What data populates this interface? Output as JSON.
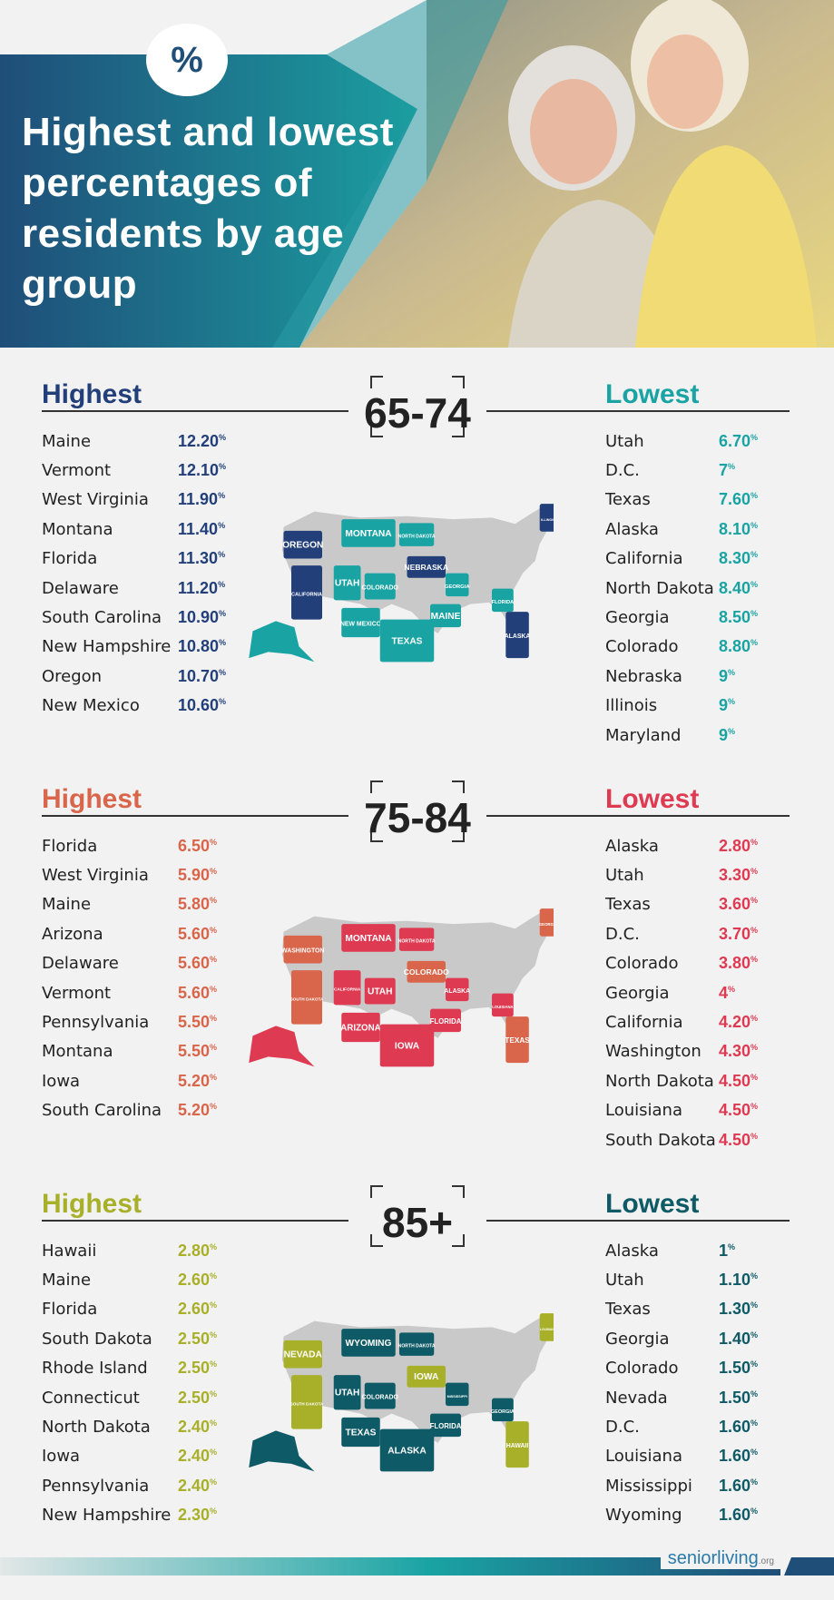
{
  "header": {
    "percent_symbol": "%",
    "title": "Highest and lowest percentages of residents by age group"
  },
  "logo": {
    "text": "seniorliving",
    "suffix": ".org"
  },
  "colors": {
    "navy": "#223f7a",
    "teal": "#1aa3a3",
    "coral": "#d9654a",
    "red": "#de3a52",
    "olive": "#a8b02a",
    "darkteal": "#0e5a66",
    "mapgray": "#c9c9c9"
  },
  "sections": [
    {
      "age": "65-74",
      "highest_label": "Highest",
      "lowest_label": "Lowest",
      "highest": [
        {
          "state": "Maine",
          "value": "12.20"
        },
        {
          "state": "Vermont",
          "value": "12.10"
        },
        {
          "state": "West Virginia",
          "value": "11.90"
        },
        {
          "state": "Montana",
          "value": "11.40"
        },
        {
          "state": "Florida",
          "value": "11.30"
        },
        {
          "state": "Delaware",
          "value": "11.20"
        },
        {
          "state": "South Carolina",
          "value": "10.90"
        },
        {
          "state": "New Hampshire",
          "value": "10.80"
        },
        {
          "state": "Oregon",
          "value": "10.70"
        },
        {
          "state": "New Mexico",
          "value": "10.60"
        }
      ],
      "lowest": [
        {
          "state": "Utah",
          "value": "6.70"
        },
        {
          "state": "D.C.",
          "value": "7"
        },
        {
          "state": "Texas",
          "value": "7.60"
        },
        {
          "state": "Alaska",
          "value": "8.10"
        },
        {
          "state": "California",
          "value": "8.30"
        },
        {
          "state": "North Dakota",
          "value": "8.40"
        },
        {
          "state": "Georgia",
          "value": "8.50"
        },
        {
          "state": "Colorado",
          "value": "8.80"
        },
        {
          "state": "Nebraska",
          "value": "9"
        },
        {
          "state": "Illinois",
          "value": "9"
        },
        {
          "state": "Maryland",
          "value": "9"
        }
      ],
      "map_states": [
        "OREGON",
        "MONTANA",
        "NORTH DAKOTA",
        "CALIFORNIA",
        "UTAH",
        "COLORADO",
        "NEBRASKA",
        "NEW MEXICO",
        "TEXAS",
        "ALASKA",
        "FLORIDA",
        "GEORGIA",
        "ILLINOIS",
        "MAINE"
      ]
    },
    {
      "age": "75-84",
      "highest_label": "Highest",
      "lowest_label": "Lowest",
      "highest": [
        {
          "state": "Florida",
          "value": "6.50"
        },
        {
          "state": "West Virginia",
          "value": "5.90"
        },
        {
          "state": "Maine",
          "value": "5.80"
        },
        {
          "state": "Arizona",
          "value": "5.60"
        },
        {
          "state": "Delaware",
          "value": "5.60"
        },
        {
          "state": "Vermont",
          "value": "5.60"
        },
        {
          "state": "Pennsylvania",
          "value": "5.50"
        },
        {
          "state": "Montana",
          "value": "5.50"
        },
        {
          "state": "Iowa",
          "value": "5.20"
        },
        {
          "state": "South Carolina",
          "value": "5.20"
        }
      ],
      "lowest": [
        {
          "state": "Alaska",
          "value": "2.80"
        },
        {
          "state": "Utah",
          "value": "3.30"
        },
        {
          "state": "Texas",
          "value": "3.60"
        },
        {
          "state": "D.C.",
          "value": "3.70"
        },
        {
          "state": "Colorado",
          "value": "3.80"
        },
        {
          "state": "Georgia",
          "value": "4"
        },
        {
          "state": "California",
          "value": "4.20"
        },
        {
          "state": "Washington",
          "value": "4.30"
        },
        {
          "state": "North Dakota",
          "value": "4.50"
        },
        {
          "state": "Louisiana",
          "value": "4.50"
        },
        {
          "state": "South Dakota",
          "value": "4.50"
        }
      ],
      "map_states": [
        "WASHINGTON",
        "MONTANA",
        "NORTH DAKOTA",
        "SOUTH DAKOTA",
        "CALIFORNIA",
        "UTAH",
        "COLORADO",
        "ARIZONA",
        "IOWA",
        "TEXAS",
        "LOUISIANA",
        "ALASKA",
        "GEORGIA",
        "FLORIDA"
      ]
    },
    {
      "age": "85+",
      "highest_label": "Highest",
      "lowest_label": "Lowest",
      "highest": [
        {
          "state": "Hawaii",
          "value": "2.80"
        },
        {
          "state": "Maine",
          "value": "2.60"
        },
        {
          "state": "Florida",
          "value": "2.60"
        },
        {
          "state": "South Dakota",
          "value": "2.50"
        },
        {
          "state": "Rhode Island",
          "value": "2.50"
        },
        {
          "state": "Connecticut",
          "value": "2.50"
        },
        {
          "state": "North Dakota",
          "value": "2.40"
        },
        {
          "state": "Iowa",
          "value": "2.40"
        },
        {
          "state": "Pennsylvania",
          "value": "2.40"
        },
        {
          "state": "New Hampshire",
          "value": "2.30"
        }
      ],
      "lowest": [
        {
          "state": "Alaska",
          "value": "1"
        },
        {
          "state": "Utah",
          "value": "1.10"
        },
        {
          "state": "Texas",
          "value": "1.30"
        },
        {
          "state": "Georgia",
          "value": "1.40"
        },
        {
          "state": "Colorado",
          "value": "1.50"
        },
        {
          "state": "Nevada",
          "value": "1.50"
        },
        {
          "state": "D.C.",
          "value": "1.60"
        },
        {
          "state": "Louisiana",
          "value": "1.60"
        },
        {
          "state": "Mississippi",
          "value": "1.60"
        },
        {
          "state": "Wyoming",
          "value": "1.60"
        }
      ],
      "map_states": [
        "NEVADA",
        "WYOMING",
        "NORTH DAKOTA",
        "SOUTH DAKOTA",
        "UTAH",
        "COLORADO",
        "IOWA",
        "TEXAS",
        "ALASKA",
        "HAWAII",
        "GEORGIA",
        "MISSISSIPPI",
        "LOUISIANA",
        "FLORIDA"
      ]
    }
  ],
  "chart_data": [
    {
      "type": "table",
      "title": "65-74",
      "series": [
        {
          "name": "Highest",
          "categories": [
            "Maine",
            "Vermont",
            "West Virginia",
            "Montana",
            "Florida",
            "Delaware",
            "South Carolina",
            "New Hampshire",
            "Oregon",
            "New Mexico"
          ],
          "values": [
            12.2,
            12.1,
            11.9,
            11.4,
            11.3,
            11.2,
            10.9,
            10.8,
            10.7,
            10.6
          ]
        },
        {
          "name": "Lowest",
          "categories": [
            "Utah",
            "D.C.",
            "Texas",
            "Alaska",
            "California",
            "North Dakota",
            "Georgia",
            "Colorado",
            "Nebraska",
            "Illinois",
            "Maryland"
          ],
          "values": [
            6.7,
            7,
            7.6,
            8.1,
            8.3,
            8.4,
            8.5,
            8.8,
            9,
            9,
            9
          ]
        }
      ]
    },
    {
      "type": "table",
      "title": "75-84",
      "series": [
        {
          "name": "Highest",
          "categories": [
            "Florida",
            "West Virginia",
            "Maine",
            "Arizona",
            "Delaware",
            "Vermont",
            "Pennsylvania",
            "Montana",
            "Iowa",
            "South Carolina"
          ],
          "values": [
            6.5,
            5.9,
            5.8,
            5.6,
            5.6,
            5.6,
            5.5,
            5.5,
            5.2,
            5.2
          ]
        },
        {
          "name": "Lowest",
          "categories": [
            "Alaska",
            "Utah",
            "Texas",
            "D.C.",
            "Colorado",
            "Georgia",
            "California",
            "Washington",
            "North Dakota",
            "Louisiana",
            "South Dakota"
          ],
          "values": [
            2.8,
            3.3,
            3.6,
            3.7,
            3.8,
            4,
            4.2,
            4.3,
            4.5,
            4.5,
            4.5
          ]
        }
      ]
    },
    {
      "type": "table",
      "title": "85+",
      "series": [
        {
          "name": "Highest",
          "categories": [
            "Hawaii",
            "Maine",
            "Florida",
            "South Dakota",
            "Rhode Island",
            "Connecticut",
            "North Dakota",
            "Iowa",
            "Pennsylvania",
            "New Hampshire"
          ],
          "values": [
            2.8,
            2.6,
            2.6,
            2.5,
            2.5,
            2.5,
            2.4,
            2.4,
            2.4,
            2.3
          ]
        },
        {
          "name": "Lowest",
          "categories": [
            "Alaska",
            "Utah",
            "Texas",
            "Georgia",
            "Colorado",
            "Nevada",
            "D.C.",
            "Louisiana",
            "Mississippi",
            "Wyoming"
          ],
          "values": [
            1,
            1.1,
            1.3,
            1.4,
            1.5,
            1.5,
            1.6,
            1.6,
            1.6,
            1.6
          ]
        }
      ]
    }
  ]
}
